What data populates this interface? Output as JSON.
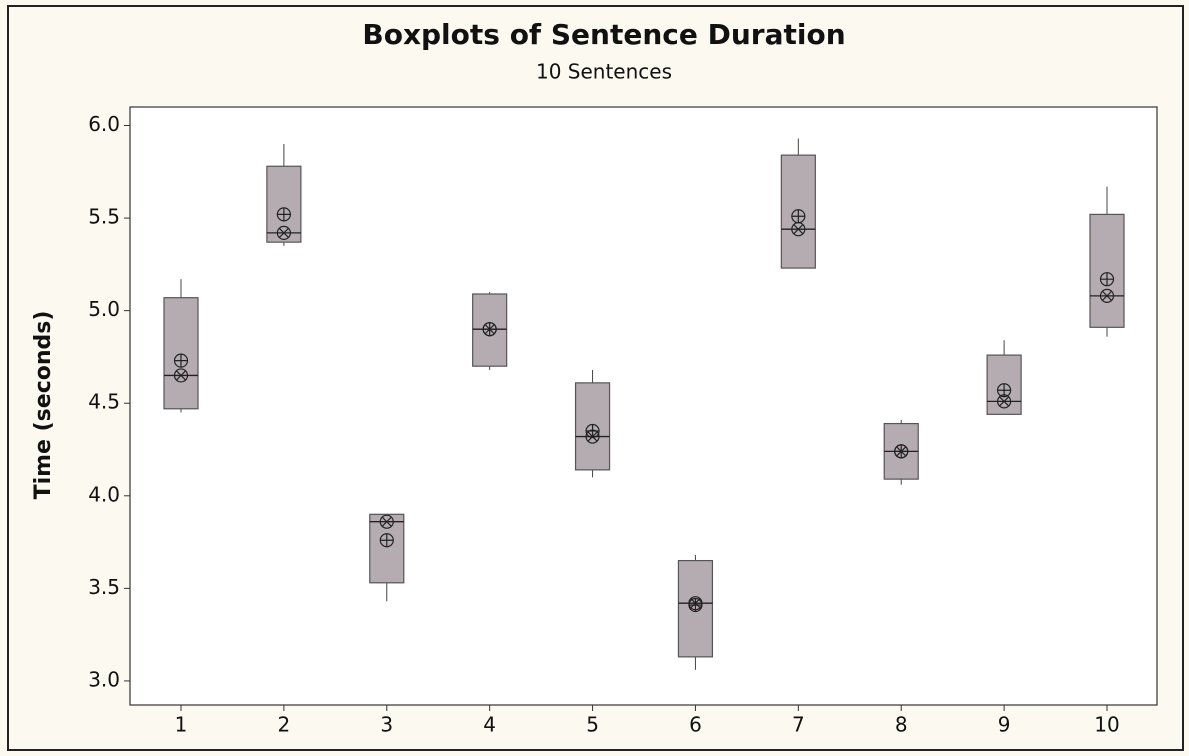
{
  "chart_data": {
    "type": "box",
    "title": "Boxplots of Sentence Duration",
    "subtitle": "10 Sentences",
    "y_label": "Time (seconds)",
    "categories": [
      "1",
      "2",
      "3",
      "4",
      "5",
      "6",
      "7",
      "8",
      "9",
      "10"
    ],
    "boxes": [
      {
        "whisker_low": 4.45,
        "q1": 4.47,
        "median": 4.65,
        "q3": 5.07,
        "whisker_high": 5.17,
        "mean": 4.73
      },
      {
        "whisker_low": 5.35,
        "q1": 5.37,
        "median": 5.42,
        "q3": 5.78,
        "whisker_high": 5.9,
        "mean": 5.52
      },
      {
        "whisker_low": 3.43,
        "q1": 3.53,
        "median": 3.86,
        "q3": 3.9,
        "whisker_high": 3.9,
        "mean": 3.76
      },
      {
        "whisker_low": 4.68,
        "q1": 4.7,
        "median": 4.9,
        "q3": 5.09,
        "whisker_high": 5.1,
        "mean": 4.9
      },
      {
        "whisker_low": 4.1,
        "q1": 4.14,
        "median": 4.32,
        "q3": 4.61,
        "whisker_high": 4.68,
        "mean": 4.35
      },
      {
        "whisker_low": 3.06,
        "q1": 3.13,
        "median": 3.42,
        "q3": 3.65,
        "whisker_high": 3.68,
        "mean": 3.41
      },
      {
        "whisker_low": 5.23,
        "q1": 5.23,
        "median": 5.44,
        "q3": 5.84,
        "whisker_high": 5.93,
        "mean": 5.51
      },
      {
        "whisker_low": 4.06,
        "q1": 4.09,
        "median": 4.24,
        "q3": 4.39,
        "whisker_high": 4.41,
        "mean": 4.24
      },
      {
        "whisker_low": 4.44,
        "q1": 4.44,
        "median": 4.51,
        "q3": 4.76,
        "whisker_high": 4.84,
        "mean": 4.57
      },
      {
        "whisker_low": 4.86,
        "q1": 4.91,
        "median": 5.08,
        "q3": 5.52,
        "whisker_high": 5.67,
        "mean": 5.17
      }
    ],
    "color": "#b5acb2",
    "ylim": [
      2.87,
      6.1
    ],
    "yticks": [
      {
        "value": 3,
        "label": "3.0"
      },
      3.5,
      {
        "value": 4,
        "label": "4.0"
      },
      4.5,
      {
        "value": 5,
        "label": "5.0"
      },
      5.5,
      {
        "value": 6,
        "label": "6.0"
      }
    ]
  }
}
